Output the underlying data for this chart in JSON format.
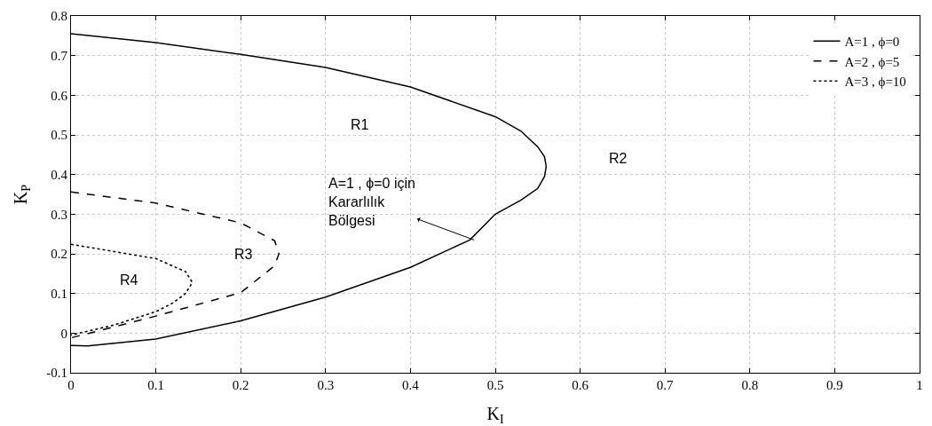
{
  "chart_data": {
    "type": "line",
    "xlabel": "K$_{I}$",
    "ylabel": "K$_{P}$",
    "xlim": [
      0,
      1
    ],
    "xticks": [
      0,
      0.1,
      0.2,
      0.3,
      0.4,
      0.5,
      0.6,
      0.7,
      0.8,
      0.9,
      1
    ],
    "ylim": [
      -0.1,
      0.8
    ],
    "yticks": [
      -0.1,
      0,
      0.1,
      0.2,
      0.3,
      0.4,
      0.5,
      0.6,
      0.7,
      0.8
    ],
    "grid": true,
    "legend": "top right",
    "marker": "none",
    "series": [
      {
        "name": "A=1 , ϕ=0",
        "color": "#000000",
        "line_style": "solid",
        "x": [
          0,
          0.1,
          0.2,
          0.3,
          0.4,
          0.5,
          0.53,
          0.55,
          0.558,
          0.56,
          0.558,
          0.55,
          0.53,
          0.5,
          0.47,
          0.4,
          0.3,
          0.2,
          0.1,
          0.02,
          0
        ],
        "values": [
          0.755,
          0.733,
          0.703,
          0.67,
          0.621,
          0.546,
          0.51,
          0.47,
          0.445,
          0.42,
          0.395,
          0.365,
          0.335,
          0.3,
          0.235,
          0.166,
          0.091,
          0.031,
          -0.015,
          -0.032,
          -0.031
        ]
      },
      {
        "name": "A=2 , ϕ=5",
        "color": "#000000",
        "line_style": "dashed",
        "x": [
          0,
          0.1,
          0.2,
          0.24,
          0.245,
          0.24,
          0.2,
          0.1,
          0
        ],
        "values": [
          0.356,
          0.328,
          0.278,
          0.233,
          0.2,
          0.17,
          0.102,
          0.043,
          -0.012
        ]
      },
      {
        "name": "A=3 , ϕ=10",
        "color": "#000000",
        "line_style": "dotted",
        "x": [
          0,
          0.1,
          0.135,
          0.143,
          0.135,
          0.12,
          0.1,
          0.05,
          0
        ],
        "values": [
          0.224,
          0.188,
          0.155,
          0.128,
          0.1,
          0.076,
          0.054,
          0.02,
          -0.005
        ]
      }
    ],
    "annotations": [
      {
        "text": "A=1 , ϕ=0 için\nKararlılık\nBölgesi",
        "x": 0.475,
        "y": 0.235
      },
      "R1",
      "R2",
      "R3",
      "R4"
    ]
  }
}
